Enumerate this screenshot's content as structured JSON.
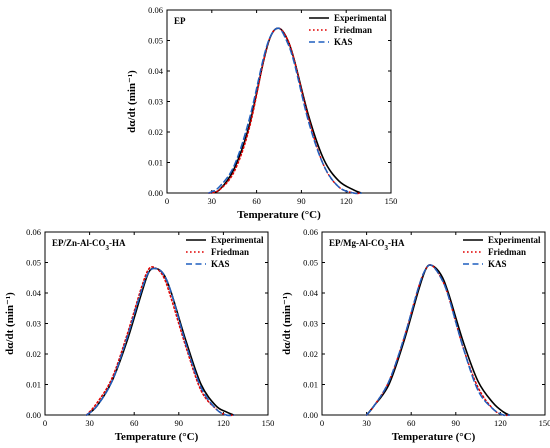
{
  "chart_data": [
    {
      "type": "line",
      "label": "EP",
      "xlabel": "Temperature (°C)",
      "ylabel": "dα/dt (min⁻¹)",
      "xlim": [
        0,
        150
      ],
      "ylim": [
        0,
        0.06
      ],
      "xticks": [
        "0",
        "30",
        "60",
        "90",
        "120",
        "150"
      ],
      "yticks": [
        "0.00",
        "0.01",
        "0.02",
        "0.03",
        "0.04",
        "0.05",
        "0.06"
      ],
      "legend_position": "top-right",
      "series": [
        {
          "name": "Experimental",
          "color": "#000000",
          "style": "solid",
          "x": [
            28,
            35,
            45,
            55,
            65,
            70,
            75,
            80,
            85,
            95,
            105,
            115,
            125,
            130
          ],
          "y": [
            0.0,
            0.001,
            0.008,
            0.022,
            0.044,
            0.052,
            0.054,
            0.051,
            0.044,
            0.025,
            0.011,
            0.004,
            0.001,
            0.0
          ]
        },
        {
          "name": "Friedman",
          "color": "#e00000",
          "style": "dotted",
          "x": [
            28,
            35,
            45,
            55,
            65,
            70,
            75,
            80,
            85,
            95,
            105,
            115,
            125,
            130
          ],
          "y": [
            0.0,
            0.001,
            0.007,
            0.021,
            0.044,
            0.052,
            0.054,
            0.051,
            0.044,
            0.024,
            0.009,
            0.002,
            0.0,
            0.0
          ]
        },
        {
          "name": "KAS",
          "color": "#1f5fbf",
          "style": "dashed",
          "x": [
            28,
            35,
            45,
            55,
            65,
            70,
            75,
            80,
            85,
            95,
            105,
            115,
            125,
            130
          ],
          "y": [
            0.0,
            0.002,
            0.009,
            0.024,
            0.045,
            0.052,
            0.054,
            0.05,
            0.043,
            0.023,
            0.009,
            0.002,
            0.0,
            0.0
          ]
        }
      ]
    },
    {
      "type": "line",
      "label": "EP/Zn-Al-CO₃-HA",
      "xlabel": "Temperature (°C)",
      "ylabel": "dα/dt (min⁻¹)",
      "xlim": [
        0,
        150
      ],
      "ylim": [
        0,
        0.06
      ],
      "xticks": [
        "0",
        "30",
        "60",
        "90",
        "120",
        "150"
      ],
      "yticks": [
        "0.00",
        "0.01",
        "0.02",
        "0.03",
        "0.04",
        "0.05",
        "0.06"
      ],
      "legend_position": "top-right",
      "series": [
        {
          "name": "Experimental",
          "color": "#000000",
          "style": "solid",
          "x": [
            28,
            35,
            45,
            55,
            65,
            70,
            75,
            80,
            85,
            95,
            105,
            115,
            122,
            127
          ],
          "y": [
            0.0,
            0.003,
            0.011,
            0.024,
            0.04,
            0.047,
            0.048,
            0.046,
            0.04,
            0.024,
            0.01,
            0.003,
            0.001,
            0.0
          ]
        },
        {
          "name": "Friedman",
          "color": "#e00000",
          "style": "dotted",
          "x": [
            28,
            35,
            45,
            55,
            65,
            70,
            75,
            80,
            85,
            95,
            105,
            115,
            122,
            127
          ],
          "y": [
            0.0,
            0.004,
            0.012,
            0.026,
            0.042,
            0.048,
            0.048,
            0.045,
            0.038,
            0.022,
            0.008,
            0.002,
            0.0,
            0.0
          ]
        },
        {
          "name": "KAS",
          "color": "#1f5fbf",
          "style": "dashed",
          "x": [
            28,
            35,
            45,
            55,
            65,
            70,
            75,
            80,
            85,
            95,
            105,
            115,
            122,
            127
          ],
          "y": [
            0.0,
            0.003,
            0.011,
            0.025,
            0.041,
            0.047,
            0.048,
            0.046,
            0.04,
            0.023,
            0.009,
            0.002,
            0.0,
            0.0
          ]
        }
      ]
    },
    {
      "type": "line",
      "label": "EP/Mg-Al-CO₃-HA",
      "xlabel": "Temperature (°C)",
      "ylabel": "dα/dt (min⁻¹)",
      "xlim": [
        0,
        150
      ],
      "ylim": [
        0,
        0.06
      ],
      "xticks": [
        "0",
        "30",
        "60",
        "90",
        "120",
        "150"
      ],
      "yticks": [
        "0.00",
        "0.01",
        "0.02",
        "0.03",
        "0.04",
        "0.05",
        "0.06"
      ],
      "legend_position": "top-right",
      "series": [
        {
          "name": "Experimental",
          "color": "#000000",
          "style": "solid",
          "x": [
            30,
            35,
            45,
            55,
            65,
            70,
            74,
            80,
            85,
            95,
            105,
            115,
            122,
            126
          ],
          "y": [
            0.0,
            0.003,
            0.01,
            0.024,
            0.041,
            0.048,
            0.049,
            0.046,
            0.04,
            0.024,
            0.011,
            0.004,
            0.001,
            0.0
          ]
        },
        {
          "name": "Friedman",
          "color": "#e00000",
          "style": "dotted",
          "x": [
            30,
            35,
            45,
            55,
            65,
            70,
            74,
            80,
            85,
            95,
            105,
            115,
            122,
            126
          ],
          "y": [
            0.0,
            0.003,
            0.011,
            0.025,
            0.042,
            0.048,
            0.049,
            0.045,
            0.039,
            0.022,
            0.009,
            0.002,
            0.0,
            0.0
          ]
        },
        {
          "name": "KAS",
          "color": "#1f5fbf",
          "style": "dashed",
          "x": [
            30,
            35,
            45,
            55,
            65,
            70,
            74,
            80,
            85,
            95,
            105,
            115,
            122,
            126
          ],
          "y": [
            0.0,
            0.003,
            0.011,
            0.025,
            0.042,
            0.048,
            0.049,
            0.045,
            0.039,
            0.022,
            0.008,
            0.002,
            0.0,
            0.0
          ]
        }
      ]
    }
  ]
}
